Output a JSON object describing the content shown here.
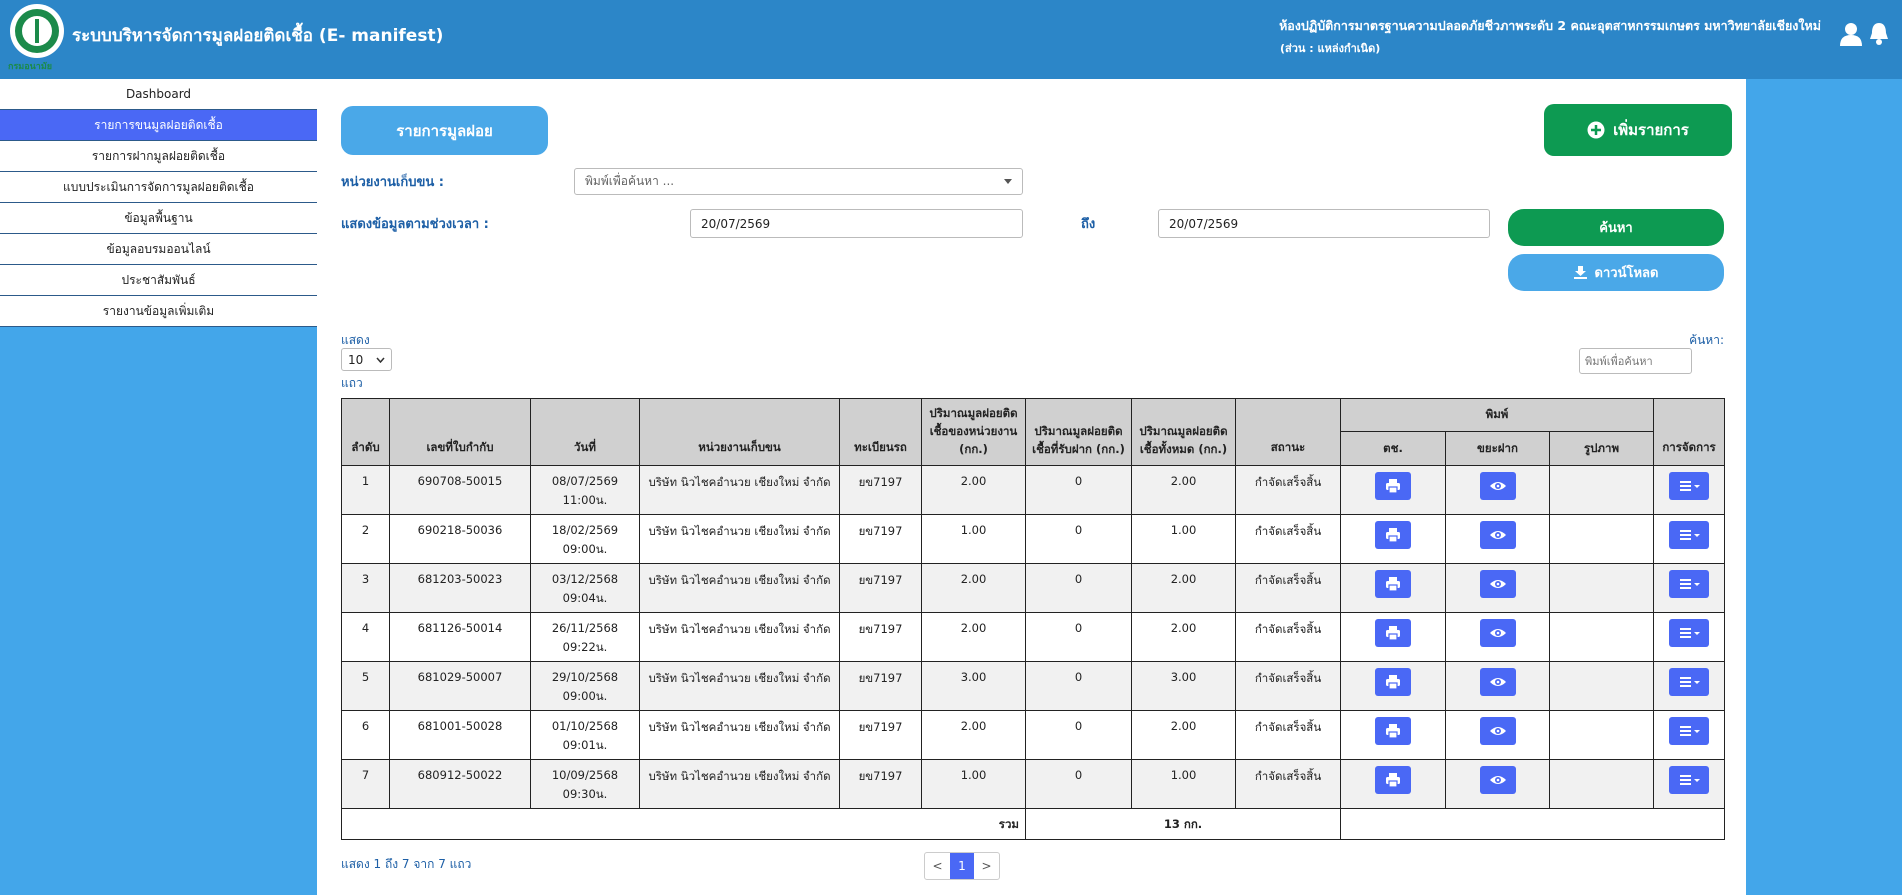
{
  "header": {
    "logo_text": "กรมอนามัย",
    "title": "ระบบบริหารจัดการมูลฝอยติดเชื้อ (E- manifest)",
    "org": "ห้องปฏิบัติการมาตรฐานความปลอดภัยชีวภาพระดับ 2 คณะอุตสาหกรรมเกษตร มหาวิทยาลัยเชียงใหม่",
    "role": "(ส่วน : แหล่งกำเนิด)"
  },
  "sidebar": {
    "items": [
      "Dashboard",
      "รายการขนมูลฝอยติดเชื้อ",
      "รายการฝากมูลฝอยติดเชื้อ",
      "แบบประเมินการจัดการมูลฝอยติดเชื้อ",
      "ข้อมูลพื้นฐาน",
      "ข้อมูลอบรมออนไลน์",
      "ประชาสัมพันธ์",
      "รายงานข้อมูลเพิ่มเติม"
    ],
    "active": 1
  },
  "main": {
    "tab": "รายการมูลฝอย",
    "add_button": "เพิ่มรายการ",
    "agency_label": "หน่วยงานเก็บขน :",
    "agency_placeholder": "พิมพ์เพื่อค้นหา ...",
    "period_label": "แสดงข้อมูลตามช่วงเวลา :",
    "date_from": "20/07/2569",
    "to_label": "ถึง",
    "date_to": "20/07/2569",
    "search_button": "ค้นหา",
    "download_button": "ดาวน์โหลด",
    "show_label": "แสดง",
    "page_size": "10",
    "rows_label": "แถว",
    "filter_label": "ค้นหา:",
    "filter_placeholder": "พิมพ์เพื่อค้นหา"
  },
  "table": {
    "headers": {
      "no": "ลำดับ",
      "invoice": "เลขที่ใบกำกับ",
      "date": "วันที่",
      "agency": "หน่วยงานเก็บขน",
      "plate": "ทะเบียนรถ",
      "own_qty": "ปริมาณมูลฝอยติดเชื้อของหน่วยงาน (กก.)",
      "deposit_qty": "ปริมาณมูลฝอยติดเชื้อที่รับฝาก (กก.)",
      "total_qty": "ปริมาณมูลฝอยติดเชื้อทั้งหมด (กก.)",
      "status": "สถานะ",
      "print": "พิมพ์",
      "print_tc": "ตช.",
      "print_deposit": "ขยะฝาก",
      "print_image": "รูปภาพ",
      "manage": "การจัดการ"
    },
    "rows": [
      {
        "no": "1",
        "invoice": "690708-50015",
        "date": "08/07/2569",
        "time": "11:00น.",
        "agency": "บริษัท นิวไชคอำนวย เชียงใหม่ จำกัด",
        "plate": "ยข7197",
        "own_qty": "2.00",
        "deposit_qty": "0",
        "total_qty": "2.00",
        "status": "กำจัดเสร็จสิ้น"
      },
      {
        "no": "2",
        "invoice": "690218-50036",
        "date": "18/02/2569",
        "time": "09:00น.",
        "agency": "บริษัท นิวไชคอำนวย เชียงใหม่ จำกัด",
        "plate": "ยข7197",
        "own_qty": "1.00",
        "deposit_qty": "0",
        "total_qty": "1.00",
        "status": "กำจัดเสร็จสิ้น"
      },
      {
        "no": "3",
        "invoice": "681203-50023",
        "date": "03/12/2568",
        "time": "09:04น.",
        "agency": "บริษัท นิวไชคอำนวย เชียงใหม่ จำกัด",
        "plate": "ยข7197",
        "own_qty": "2.00",
        "deposit_qty": "0",
        "total_qty": "2.00",
        "status": "กำจัดเสร็จสิ้น"
      },
      {
        "no": "4",
        "invoice": "681126-50014",
        "date": "26/11/2568",
        "time": "09:22น.",
        "agency": "บริษัท นิวไชคอำนวย เชียงใหม่ จำกัด",
        "plate": "ยข7197",
        "own_qty": "2.00",
        "deposit_qty": "0",
        "total_qty": "2.00",
        "status": "กำจัดเสร็จสิ้น"
      },
      {
        "no": "5",
        "invoice": "681029-50007",
        "date": "29/10/2568",
        "time": "09:00น.",
        "agency": "บริษัท นิวไชคอำนวย เชียงใหม่ จำกัด",
        "plate": "ยข7197",
        "own_qty": "3.00",
        "deposit_qty": "0",
        "total_qty": "3.00",
        "status": "กำจัดเสร็จสิ้น"
      },
      {
        "no": "6",
        "invoice": "681001-50028",
        "date": "01/10/2568",
        "time": "09:01น.",
        "agency": "บริษัท นิวไชคอำนวย เชียงใหม่ จำกัด",
        "plate": "ยข7197",
        "own_qty": "2.00",
        "deposit_qty": "0",
        "total_qty": "2.00",
        "status": "กำจัดเสร็จสิ้น"
      },
      {
        "no": "7",
        "invoice": "680912-50022",
        "date": "10/09/2568",
        "time": "09:30น.",
        "agency": "บริษัท นิวไชคอำนวย เชียงใหม่ จำกัด",
        "plate": "ยข7197",
        "own_qty": "1.00",
        "deposit_qty": "0",
        "total_qty": "1.00",
        "status": "กำจัดเสร็จสิ้น"
      }
    ],
    "total_label": "รวม",
    "total_value": "13 กก."
  },
  "footer": {
    "info": "แสดง 1 ถึง 7 จาก 7 แถว",
    "prev": "<",
    "page": "1",
    "next": ">"
  }
}
